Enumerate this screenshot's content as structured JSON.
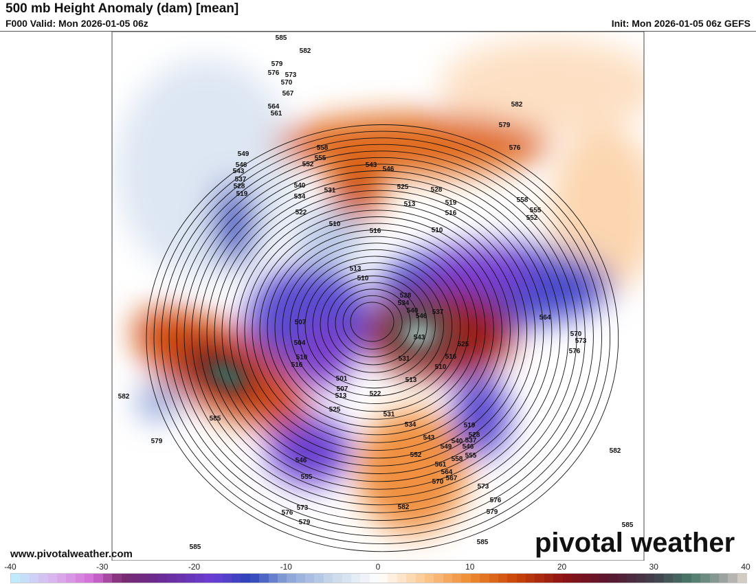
{
  "header": {
    "title": "500 mb Height Anomaly (dam) [mean]",
    "valid": "F000 Valid: Mon 2026-01-05 06z",
    "init": "Init: Mon 2026-01-05 06z GEFS"
  },
  "footer": {
    "website": "www.pivotalweather.com",
    "logo": "pivotal weather"
  },
  "colorbar": {
    "min": -40,
    "max": 40,
    "step": 1,
    "ticks": [
      "-40",
      "-30",
      "-20",
      "-10",
      "0",
      "10",
      "20",
      "30",
      "40"
    ],
    "stops": [
      [
        "-40",
        "#bff0ff"
      ],
      [
        "-35",
        "#dcb0ee"
      ],
      [
        "-31",
        "#d36ad6"
      ],
      [
        "-28",
        "#7a2a6e"
      ],
      [
        "-24",
        "#6a2a90"
      ],
      [
        "-18",
        "#6a3fd6"
      ],
      [
        "-14",
        "#2c42b8"
      ],
      [
        "-10",
        "#8aa4d8"
      ],
      [
        "-5",
        "#c8d8ec"
      ],
      [
        "0",
        "#ffffff"
      ],
      [
        "5",
        "#fcc890"
      ],
      [
        "10",
        "#ee8a30"
      ],
      [
        "15",
        "#c84408"
      ],
      [
        "20",
        "#8e1214"
      ],
      [
        "25",
        "#5a1630"
      ],
      [
        "30",
        "#40404c"
      ],
      [
        "34",
        "#4a7a6a"
      ],
      [
        "38",
        "#a8a8a8"
      ],
      [
        "40",
        "#e0d8cc"
      ]
    ]
  },
  "contour_labels": [
    "585",
    "582",
    "579",
    "576",
    "573",
    "570",
    "567",
    "564",
    "561",
    "558",
    "555",
    "552",
    "549",
    "546",
    "543",
    "537",
    "528",
    "519",
    "540",
    "534",
    "531",
    "522",
    "510",
    "516",
    "513",
    "510",
    "543",
    "546",
    "525",
    "528",
    "513",
    "519",
    "516",
    "510",
    "582",
    "579",
    "576",
    "558",
    "555",
    "552",
    "564",
    "570",
    "573",
    "576",
    "582",
    "585",
    "528",
    "534",
    "540",
    "546",
    "537",
    "543",
    "525",
    "516",
    "510",
    "513",
    "531",
    "507",
    "504",
    "510",
    "516",
    "501",
    "507",
    "513",
    "522",
    "525",
    "531",
    "534",
    "543",
    "549",
    "552",
    "540",
    "546",
    "555",
    "558",
    "561",
    "564",
    "567",
    "570",
    "573",
    "576",
    "579",
    "582",
    "585",
    "546",
    "555",
    "573",
    "576",
    "579",
    "585",
    "582",
    "579",
    "585",
    "519",
    "528",
    "537"
  ]
}
